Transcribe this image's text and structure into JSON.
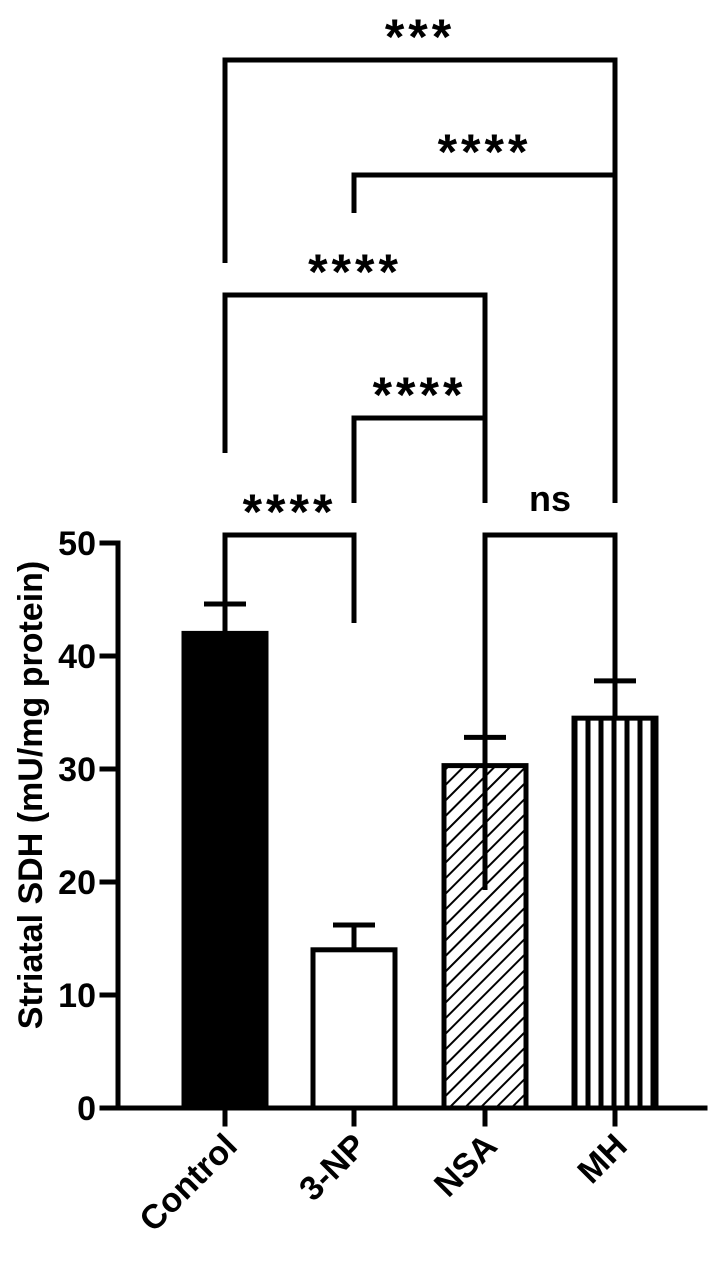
{
  "chart_data": {
    "type": "bar",
    "ylabel": "Striatal SDH (mU/mg protein)",
    "ylim": [
      0,
      50
    ],
    "yticks": [
      0,
      10,
      20,
      30,
      40,
      50
    ],
    "grid": false,
    "categories": [
      "Control",
      "3-NP",
      "NSA",
      "MH"
    ],
    "values": [
      42,
      14,
      30.3,
      34.5
    ],
    "errors": [
      2.6,
      2.2,
      2.5,
      3.3
    ],
    "patterns": [
      "solid-black",
      "white",
      "diagonal-hatch",
      "vertical-stripes"
    ],
    "comparisons": [
      {
        "from": "Control",
        "to": "3-NP",
        "label": "****"
      },
      {
        "from": "NSA",
        "to": "MH",
        "label": "ns"
      },
      {
        "from": "3-NP",
        "to": "NSA",
        "label": "****"
      },
      {
        "from": "Control",
        "to": "NSA",
        "label": "****"
      },
      {
        "from": "3-NP",
        "to": "MH",
        "label": "****"
      },
      {
        "from": "Control",
        "to": "MH",
        "label": "***"
      }
    ]
  }
}
